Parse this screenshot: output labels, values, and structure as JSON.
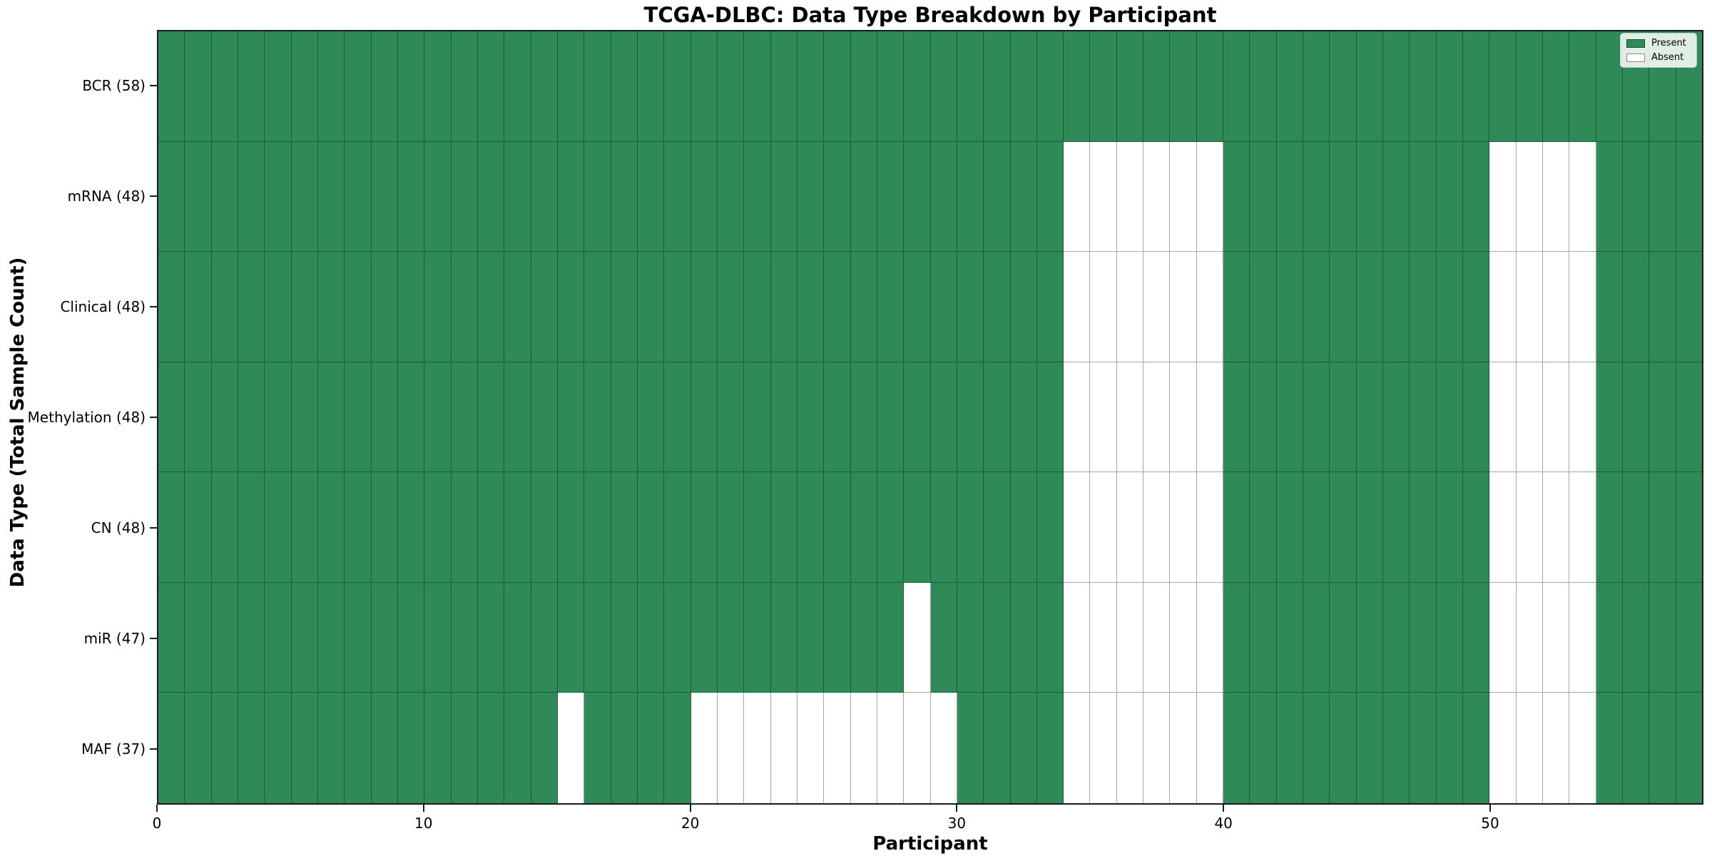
{
  "chart_data": {
    "type": "heatmap",
    "title": "TCGA-DLBC: Data Type Breakdown by Participant",
    "xlabel": "Participant",
    "ylabel": "Data Type (Total Sample Count)",
    "x_ticks": [
      0,
      10,
      20,
      30,
      40,
      50
    ],
    "x_range": [
      0,
      58
    ],
    "total_participants": 58,
    "grid": true,
    "legend": {
      "position": "upper right",
      "entries": [
        {
          "label": "Present",
          "color": "#2e8b57"
        },
        {
          "label": "Absent",
          "color": "#ffffff"
        }
      ]
    },
    "rows": [
      {
        "label": "BCR (58)",
        "data_type": "BCR",
        "present_count": 58,
        "absent_participants": []
      },
      {
        "label": "mRNA (48)",
        "data_type": "mRNA",
        "present_count": 48,
        "absent_participants": [
          34,
          35,
          36,
          37,
          38,
          39,
          50,
          51,
          52,
          53
        ]
      },
      {
        "label": "Clinical (48)",
        "data_type": "Clinical",
        "present_count": 48,
        "absent_participants": [
          34,
          35,
          36,
          37,
          38,
          39,
          50,
          51,
          52,
          53
        ]
      },
      {
        "label": "Methylation (48)",
        "data_type": "Methylation",
        "present_count": 48,
        "absent_participants": [
          34,
          35,
          36,
          37,
          38,
          39,
          50,
          51,
          52,
          53
        ]
      },
      {
        "label": "CN (48)",
        "data_type": "CN",
        "present_count": 48,
        "absent_participants": [
          34,
          35,
          36,
          37,
          38,
          39,
          50,
          51,
          52,
          53
        ]
      },
      {
        "label": "miR (47)",
        "data_type": "miR",
        "present_count": 47,
        "absent_participants": [
          28,
          34,
          35,
          36,
          37,
          38,
          39,
          50,
          51,
          52,
          53
        ]
      },
      {
        "label": "MAF (37)",
        "data_type": "MAF",
        "present_count": 37,
        "absent_participants": [
          15,
          20,
          21,
          22,
          23,
          24,
          25,
          26,
          27,
          28,
          29,
          34,
          35,
          36,
          37,
          38,
          39,
          50,
          51,
          52,
          53
        ]
      }
    ],
    "colors": {
      "present": "#2e8b57",
      "absent": "#ffffff",
      "grid_line": "rgba(0,0,0,0.35)",
      "frame": "#1a1a1a",
      "legend_border": "#c7c7c7"
    }
  }
}
